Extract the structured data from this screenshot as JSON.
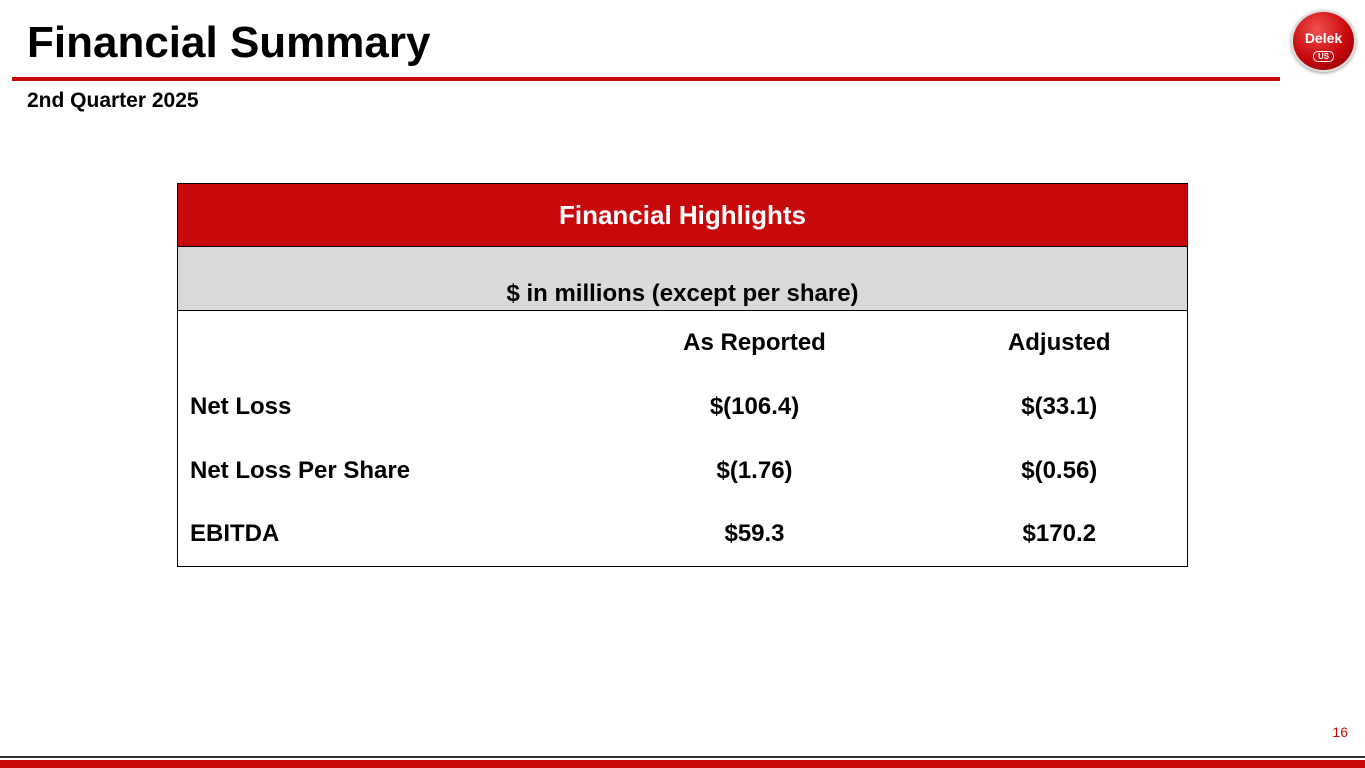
{
  "header": {
    "title": "Financial Summary",
    "subtitle": "2nd Quarter 2025",
    "logo_text": "Delek",
    "logo_sub": "US"
  },
  "table": {
    "title": "Financial Highlights",
    "unit_note": "$ in millions (except per share)",
    "columns": [
      "",
      "As Reported",
      "Adjusted"
    ],
    "rows": [
      {
        "label": "Net Loss",
        "reported": "$(106.4)",
        "adjusted": "$(33.1)"
      },
      {
        "label": "Net Loss Per Share",
        "reported": "$(1.76)",
        "adjusted": "$(0.56)"
      },
      {
        "label": "EBITDA",
        "reported": "$59.3",
        "adjusted": "$170.2"
      }
    ]
  },
  "footer": {
    "page_number": "16"
  },
  "colors": {
    "brand_red": "#c8090c"
  }
}
